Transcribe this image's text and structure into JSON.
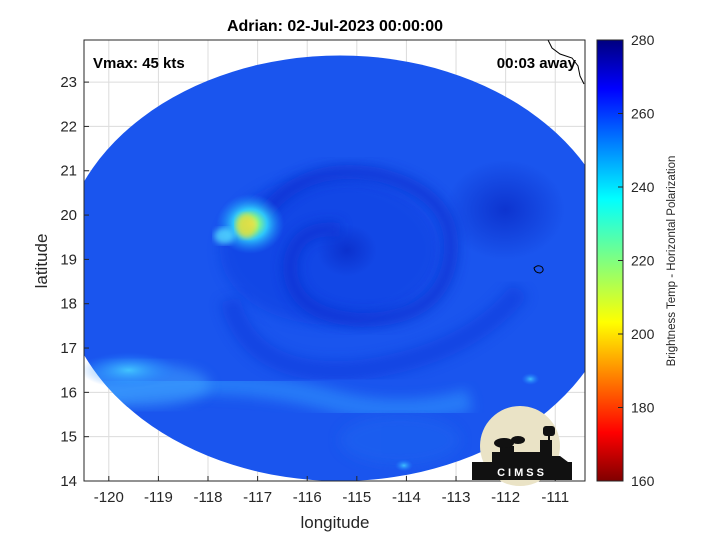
{
  "chart_data": {
    "type": "heatmap",
    "title": "Adrian: 02-Jul-2023 00:00:00",
    "xlabel": "longitude",
    "ylabel": "latitude",
    "xlim": [
      -120.5,
      -110.4
    ],
    "ylim": [
      14,
      23.95
    ],
    "xticks": [
      "-120",
      "-119",
      "-118",
      "-117",
      "-116",
      "-115",
      "-114",
      "-113",
      "-112",
      "-111"
    ],
    "yticks": [
      "14",
      "15",
      "16",
      "17",
      "18",
      "19",
      "20",
      "21",
      "22",
      "23"
    ],
    "grid": true,
    "annotations": {
      "vmax": "Vmax: 45 kts",
      "time_away": "00:03 away"
    },
    "colorbar": {
      "label": "Brightness Temp - Horizontal Polarization",
      "min": 160,
      "max": 280,
      "ticks": [
        "160",
        "180",
        "200",
        "220",
        "240",
        "260",
        "280"
      ],
      "colormap": "jet"
    },
    "swath": {
      "center": [
        -115.34,
        18.8
      ],
      "half_width_lon": 5.65,
      "half_height_lat": 4.8,
      "background_value": 262
    },
    "features": [
      {
        "name": "cold-spot-northwest",
        "lon": -117.15,
        "lat": 19.8,
        "value": 215
      },
      {
        "name": "cold-band-southwest",
        "lon": -119.6,
        "lat": 16.5,
        "value": 245
      },
      {
        "name": "warm-spiral-center",
        "lon": -115.2,
        "lat": 19.2,
        "value": 272
      },
      {
        "name": "cold-spot-southeast",
        "lon": -111.5,
        "lat": 16.3,
        "value": 240
      },
      {
        "name": "cold-spot-south",
        "lon": -114.05,
        "lat": 14.35,
        "value": 240
      }
    ],
    "logo": "CIMSS"
  }
}
